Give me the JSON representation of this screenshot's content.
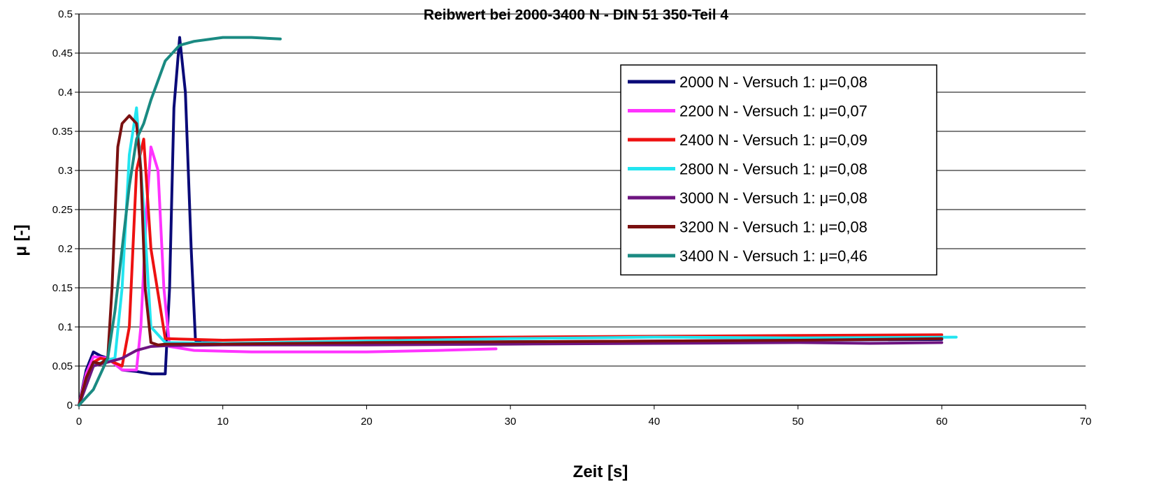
{
  "chart_data": {
    "type": "line",
    "title": "Reibwert bei 2000-3400 N - DIN 51 350-Teil 4",
    "xlabel": "Zeit [s]",
    "ylabel": "μ [-]",
    "xlim": [
      0,
      70
    ],
    "ylim": [
      0,
      0.5
    ],
    "x_ticks": [
      "0",
      "10",
      "20",
      "30",
      "40",
      "50",
      "60",
      "70"
    ],
    "y_ticks": [
      "0",
      "0.05",
      "0.1",
      "0.15",
      "0.2",
      "0.25",
      "0.3",
      "0.35",
      "0.4",
      "0.45",
      "0.5"
    ],
    "grid": "horizontal",
    "legend_position": "top-right",
    "series": [
      {
        "name": "2000 N - Versuch 1: μ=0,08",
        "color": "#0a0a78",
        "x": [
          0,
          0.5,
          1,
          1.5,
          2,
          3,
          4,
          5,
          6,
          6.3,
          6.6,
          7,
          7.4,
          7.8,
          8.1,
          8.5,
          10,
          20,
          30,
          40,
          50,
          60
        ],
        "y": [
          0,
          0.045,
          0.068,
          0.063,
          0.06,
          0.045,
          0.043,
          0.04,
          0.04,
          0.15,
          0.38,
          0.47,
          0.4,
          0.2,
          0.083,
          0.08,
          0.079,
          0.08,
          0.081,
          0.082,
          0.083,
          0.084
        ]
      },
      {
        "name": "2200 N - Versuch 1: μ=0,07",
        "color": "#ff33ff",
        "x": [
          0,
          0.5,
          1,
          2,
          3,
          4,
          4.3,
          4.7,
          5,
          5.5,
          5.9,
          6.3,
          8,
          12,
          20,
          25,
          29
        ],
        "y": [
          0,
          0.04,
          0.062,
          0.06,
          0.045,
          0.045,
          0.1,
          0.25,
          0.33,
          0.3,
          0.15,
          0.075,
          0.07,
          0.068,
          0.068,
          0.07,
          0.072
        ]
      },
      {
        "name": "2400 N - Versuch 1: μ=0,09",
        "color": "#ee1111",
        "x": [
          0,
          1,
          1.5,
          2,
          3,
          3.5,
          4,
          4.5,
          5,
          6,
          10,
          20,
          30,
          40,
          50,
          60
        ],
        "y": [
          0,
          0.055,
          0.06,
          0.058,
          0.05,
          0.1,
          0.3,
          0.34,
          0.2,
          0.085,
          0.083,
          0.086,
          0.087,
          0.088,
          0.089,
          0.09
        ]
      },
      {
        "name": "2800 N - Versuch 1: μ=0,08",
        "color": "#22e5f0",
        "x": [
          0,
          1,
          2,
          2.5,
          3,
          3.5,
          4,
          4.5,
          5,
          6,
          10,
          20,
          30,
          40,
          50,
          61
        ],
        "y": [
          0,
          0.05,
          0.058,
          0.06,
          0.15,
          0.32,
          0.38,
          0.25,
          0.1,
          0.08,
          0.079,
          0.082,
          0.085,
          0.087,
          0.086,
          0.087
        ]
      },
      {
        "name": "3000 N - Versuch 1: μ=0,08",
        "color": "#6e1480",
        "x": [
          0,
          1,
          2,
          3,
          4,
          5,
          6,
          10,
          20,
          30,
          40,
          50,
          55,
          60
        ],
        "y": [
          0,
          0.05,
          0.055,
          0.06,
          0.07,
          0.075,
          0.076,
          0.077,
          0.077,
          0.078,
          0.079,
          0.08,
          0.079,
          0.08
        ]
      },
      {
        "name": "3200 N - Versuch 1: μ=0,08",
        "color": "#7a1010",
        "x": [
          0,
          0.5,
          1,
          1.5,
          2,
          2.3,
          2.7,
          3,
          3.5,
          4,
          4.3,
          4.6,
          5,
          5.5,
          6,
          10,
          20,
          30,
          40,
          50,
          60
        ],
        "y": [
          0,
          0.035,
          0.055,
          0.053,
          0.06,
          0.15,
          0.33,
          0.36,
          0.37,
          0.36,
          0.3,
          0.15,
          0.08,
          0.077,
          0.078,
          0.078,
          0.08,
          0.081,
          0.082,
          0.083,
          0.085
        ]
      },
      {
        "name": "3400 N - Versuch 1: μ=0,46",
        "color": "#1a8a82",
        "x": [
          0,
          1,
          2,
          2.5,
          3,
          3.5,
          4,
          4.5,
          5,
          6,
          7,
          8,
          10,
          12,
          14
        ],
        "y": [
          0,
          0.02,
          0.06,
          0.12,
          0.2,
          0.28,
          0.34,
          0.36,
          0.39,
          0.44,
          0.46,
          0.465,
          0.47,
          0.47,
          0.468
        ]
      }
    ]
  }
}
